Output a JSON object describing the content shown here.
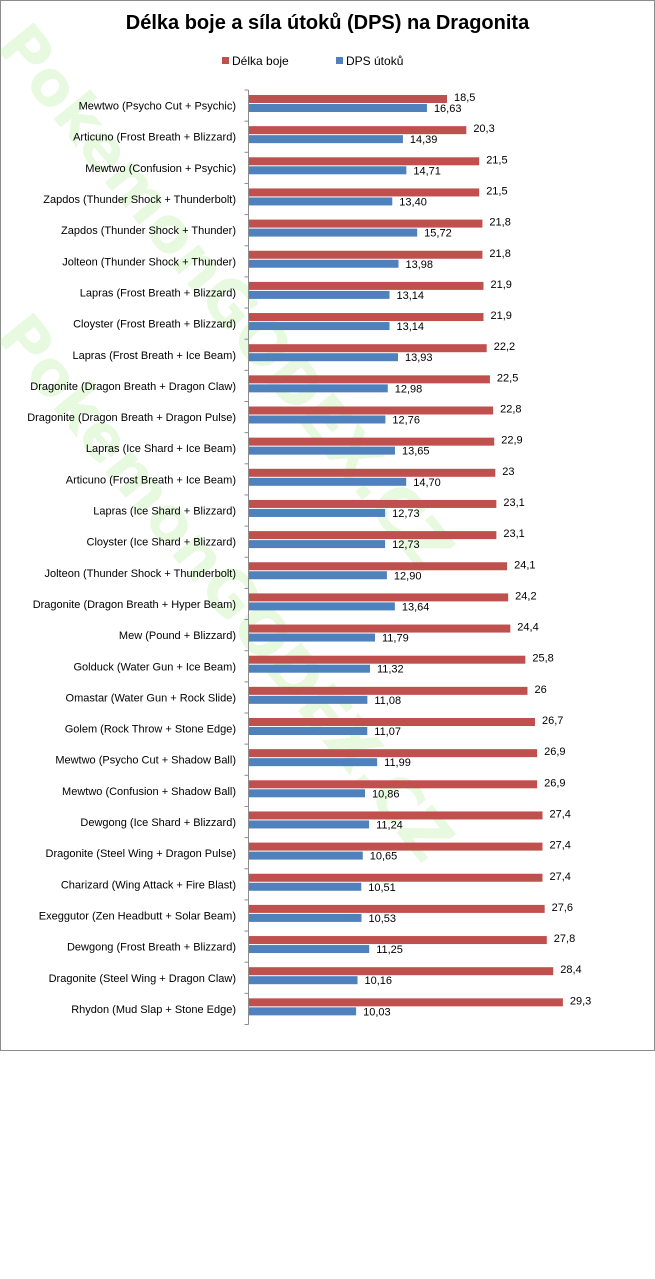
{
  "chart_data": {
    "type": "bar",
    "orientation": "horizontal",
    "title": "Délka boje a síla útoků (DPS) na Dragonita",
    "legend_position": "top",
    "watermark": "PokemonGODEX.CZ",
    "categories": [
      "Mewtwo (Psycho Cut + Psychic)",
      "Articuno (Frost Breath + Blizzard)",
      "Mewtwo (Confusion + Psychic)",
      "Zapdos (Thunder Shock + Thunderbolt)",
      "Zapdos (Thunder Shock + Thunder)",
      "Jolteon (Thunder Shock + Thunder)",
      "Lapras (Frost Breath + Blizzard)",
      "Cloyster (Frost Breath + Blizzard)",
      "Lapras (Frost Breath + Ice Beam)",
      "Dragonite (Dragon Breath + Dragon Claw)",
      "Dragonite (Dragon Breath + Dragon Pulse)",
      "Lapras (Ice Shard + Ice Beam)",
      "Articuno (Frost Breath + Ice Beam)",
      "Lapras (Ice Shard + Blizzard)",
      "Cloyster (Ice Shard + Blizzard)",
      "Jolteon (Thunder Shock + Thunderbolt)",
      "Dragonite (Dragon Breath + Hyper Beam)",
      "Mew (Pound + Blizzard)",
      "Golduck (Water Gun + Ice Beam)",
      "Omastar (Water Gun + Rock Slide)",
      "Golem (Rock Throw + Stone Edge)",
      "Mewtwo (Psycho Cut + Shadow Ball)",
      "Mewtwo (Confusion + Shadow Ball)",
      "Dewgong (Ice Shard + Blizzard)",
      "Dragonite (Steel Wing + Dragon Pulse)",
      "Charizard (Wing Attack + Fire Blast)",
      "Exeggutor (Zen Headbutt + Solar Beam)",
      "Dewgong (Frost Breath + Blizzard)",
      "Dragonite (Steel Wing + Dragon Claw)",
      "Rhydon (Mud Slap + Stone Edge)"
    ],
    "series": [
      {
        "name": "Délka boje",
        "color": "#c0504d",
        "values": [
          18.5,
          20.3,
          21.5,
          21.5,
          21.8,
          21.8,
          21.9,
          21.9,
          22.2,
          22.5,
          22.8,
          22.9,
          23,
          23.1,
          23.1,
          24.1,
          24.2,
          24.4,
          25.8,
          26,
          26.7,
          26.9,
          26.9,
          27.4,
          27.4,
          27.4,
          27.6,
          27.8,
          28.4,
          29.3
        ],
        "labels": [
          "18,5",
          "20,3",
          "21,5",
          "21,5",
          "21,8",
          "21,8",
          "21,9",
          "21,9",
          "22,2",
          "22,5",
          "22,8",
          "22,9",
          "23",
          "23,1",
          "23,1",
          "24,1",
          "24,2",
          "24,4",
          "25,8",
          "26",
          "26,7",
          "26,9",
          "26,9",
          "27,4",
          "27,4",
          "27,4",
          "27,6",
          "27,8",
          "28,4",
          "29,3"
        ]
      },
      {
        "name": "DPS útoků",
        "color": "#4f81bd",
        "values": [
          16.63,
          14.39,
          14.71,
          13.4,
          15.72,
          13.98,
          13.14,
          13.14,
          13.93,
          12.98,
          12.76,
          13.65,
          14.7,
          12.73,
          12.73,
          12.9,
          13.64,
          11.79,
          11.32,
          11.08,
          11.07,
          11.99,
          10.86,
          11.24,
          10.65,
          10.51,
          10.53,
          11.25,
          10.16,
          10.03
        ],
        "labels": [
          "16,63",
          "14,39",
          "14,71",
          "13,40",
          "15,72",
          "13,98",
          "13,14",
          "13,14",
          "13,93",
          "12,98",
          "12,76",
          "13,65",
          "14,70",
          "12,73",
          "12,73",
          "12,90",
          "13,64",
          "11,79",
          "11,32",
          "11,08",
          "11,07",
          "11,99",
          "10,86",
          "11,24",
          "10,65",
          "10,51",
          "10,53",
          "11,25",
          "10,16",
          "10,03"
        ]
      }
    ],
    "grid": false
  }
}
